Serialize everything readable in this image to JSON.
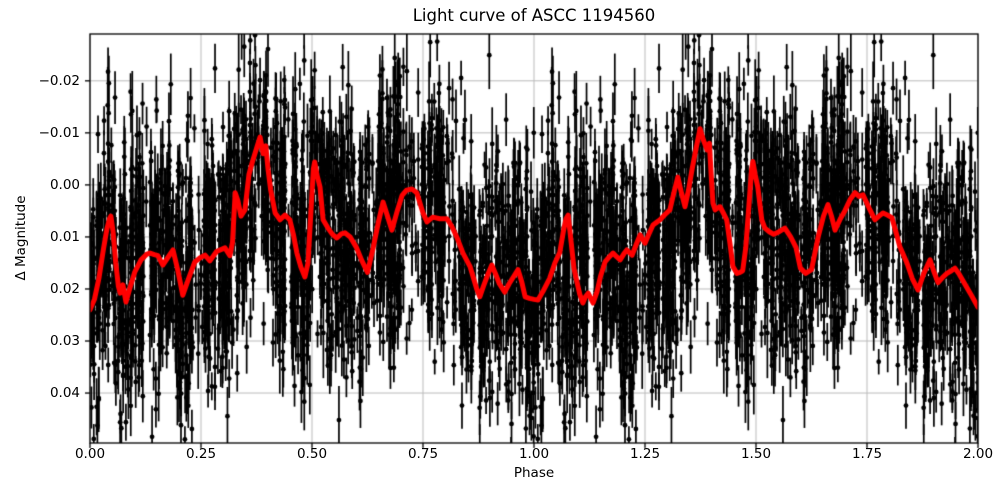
{
  "chart_data": {
    "type": "scatter",
    "title": "Light curve of ASCC 1194560",
    "xlabel": "Phase",
    "ylabel": "Δ Magnitude",
    "xlim": [
      0,
      2
    ],
    "ylim": {
      "top": -0.029,
      "bottom": 0.0496
    },
    "y_axis_inverted_magnitude": true,
    "grid": true,
    "grid_color": "#bbbbbb",
    "background": "#ffffff",
    "frame_color": "#000000",
    "x_ticks": {
      "values": [
        0,
        0.25,
        0.5,
        0.75,
        1.0,
        1.25,
        1.5,
        1.75,
        2.0
      ],
      "labels": [
        "0.00",
        "0.25",
        "0.50",
        "0.75",
        "1.00",
        "1.25",
        "1.50",
        "1.75",
        "2.00"
      ]
    },
    "y_ticks": {
      "values": [
        -0.02,
        -0.01,
        0.0,
        0.01,
        0.02,
        0.03,
        0.04
      ],
      "labels": [
        "−0.02",
        "−0.01",
        "0.00",
        "0.01",
        "0.02",
        "0.03",
        "0.04"
      ]
    },
    "series": [
      {
        "name": "observations",
        "type": "scatter_errorbar",
        "color": "#000000",
        "marker_radius": 2.4,
        "errorbar_linewidth": 1.7,
        "synthesis": {
          "seed": 1194560,
          "n_columns": 560,
          "points_per_column_min": 2,
          "points_per_column_max": 8,
          "phase_jitter": 0.002,
          "noise_sigma": 0.012,
          "err_base": 0.002,
          "err_gauss": 0.0022,
          "err_uniform": 0.0015,
          "duplicate_cycle": true
        }
      },
      {
        "name": "smoothed_light_curve",
        "type": "line",
        "color": "#ff0000",
        "linewidth": 5,
        "points": [
          [
            0.0,
            0.024
          ],
          [
            0.01,
            0.022
          ],
          [
            0.02,
            0.018
          ],
          [
            0.03,
            0.0125
          ],
          [
            0.038,
            0.0085
          ],
          [
            0.044,
            0.0065
          ],
          [
            0.047,
            0.006
          ],
          [
            0.052,
            0.009
          ],
          [
            0.058,
            0.015
          ],
          [
            0.064,
            0.0195
          ],
          [
            0.068,
            0.0208
          ],
          [
            0.074,
            0.0192
          ],
          [
            0.081,
            0.0225
          ],
          [
            0.09,
            0.0198
          ],
          [
            0.101,
            0.0167
          ],
          [
            0.115,
            0.0144
          ],
          [
            0.128,
            0.0133
          ],
          [
            0.135,
            0.0131
          ],
          [
            0.145,
            0.0134
          ],
          [
            0.153,
            0.0136
          ],
          [
            0.164,
            0.0154
          ],
          [
            0.175,
            0.014
          ],
          [
            0.187,
            0.0125
          ],
          [
            0.198,
            0.0165
          ],
          [
            0.209,
            0.0212
          ],
          [
            0.222,
            0.018
          ],
          [
            0.236,
            0.0148
          ],
          [
            0.248,
            0.014
          ],
          [
            0.259,
            0.0135
          ],
          [
            0.27,
            0.0146
          ],
          [
            0.285,
            0.0128
          ],
          [
            0.304,
            0.0121
          ],
          [
            0.315,
            0.0136
          ],
          [
            0.321,
            0.011
          ],
          [
            0.327,
            0.0015
          ],
          [
            0.333,
            0.003
          ],
          [
            0.34,
            0.006
          ],
          [
            0.349,
            0.0048
          ],
          [
            0.358,
            -0.002
          ],
          [
            0.366,
            -0.0045
          ],
          [
            0.375,
            -0.007
          ],
          [
            0.383,
            -0.0092
          ],
          [
            0.39,
            -0.006
          ],
          [
            0.396,
            -0.0075
          ],
          [
            0.401,
            -0.003
          ],
          [
            0.407,
            0.001
          ],
          [
            0.417,
            0.0054
          ],
          [
            0.428,
            0.0067
          ],
          [
            0.439,
            0.0058
          ],
          [
            0.45,
            0.0067
          ],
          [
            0.458,
            0.0095
          ],
          [
            0.466,
            0.0131
          ],
          [
            0.475,
            0.0158
          ],
          [
            0.484,
            0.0177
          ],
          [
            0.491,
            0.015
          ],
          [
            0.497,
            0.006
          ],
          [
            0.503,
            -0.003
          ],
          [
            0.506,
            -0.0044
          ],
          [
            0.511,
            -0.002
          ],
          [
            0.518,
            0.0004
          ],
          [
            0.525,
            0.0067
          ],
          [
            0.536,
            0.0083
          ],
          [
            0.546,
            0.0095
          ],
          [
            0.556,
            0.0102
          ],
          [
            0.566,
            0.0094
          ],
          [
            0.574,
            0.0092
          ],
          [
            0.586,
            0.01
          ],
          [
            0.6,
            0.012
          ],
          [
            0.612,
            0.0145
          ],
          [
            0.625,
            0.0168
          ],
          [
            0.638,
            0.012
          ],
          [
            0.65,
            0.007
          ],
          [
            0.66,
            0.0033
          ],
          [
            0.67,
            0.006
          ],
          [
            0.68,
            0.0087
          ],
          [
            0.692,
            0.005
          ],
          [
            0.703,
            0.002
          ],
          [
            0.713,
            0.001
          ],
          [
            0.725,
            0.0008
          ],
          [
            0.736,
            0.0015
          ],
          [
            0.75,
            0.0054
          ],
          [
            0.759,
            0.0071
          ],
          [
            0.772,
            0.0062
          ],
          [
            0.788,
            0.0065
          ],
          [
            0.804,
            0.0065
          ],
          [
            0.815,
            0.008
          ],
          [
            0.826,
            0.01
          ],
          [
            0.84,
            0.0131
          ],
          [
            0.856,
            0.0157
          ],
          [
            0.864,
            0.018
          ],
          [
            0.871,
            0.02
          ],
          [
            0.878,
            0.0215
          ],
          [
            0.886,
            0.0195
          ],
          [
            0.897,
            0.017
          ],
          [
            0.905,
            0.0154
          ],
          [
            0.913,
            0.017
          ],
          [
            0.922,
            0.019
          ],
          [
            0.934,
            0.0206
          ],
          [
            0.944,
            0.019
          ],
          [
            0.955,
            0.0175
          ],
          [
            0.964,
            0.0163
          ],
          [
            0.972,
            0.0185
          ],
          [
            0.98,
            0.0215
          ],
          [
            0.99,
            0.0218
          ],
          [
            1.0,
            0.022
          ],
          [
            1.009,
            0.0221
          ],
          [
            1.02,
            0.0205
          ],
          [
            1.035,
            0.018
          ],
          [
            1.047,
            0.015
          ],
          [
            1.058,
            0.013
          ],
          [
            1.066,
            0.009
          ],
          [
            1.072,
            0.0065
          ],
          [
            1.077,
            0.0058
          ],
          [
            1.083,
            0.0105
          ],
          [
            1.09,
            0.016
          ],
          [
            1.095,
            0.018
          ],
          [
            1.103,
            0.021
          ],
          [
            1.11,
            0.0227
          ],
          [
            1.116,
            0.0215
          ],
          [
            1.122,
            0.0208
          ],
          [
            1.128,
            0.0218
          ],
          [
            1.133,
            0.0227
          ],
          [
            1.142,
            0.0205
          ],
          [
            1.15,
            0.0175
          ],
          [
            1.16,
            0.0148
          ],
          [
            1.17,
            0.0138
          ],
          [
            1.178,
            0.0131
          ],
          [
            1.186,
            0.0138
          ],
          [
            1.194,
            0.0144
          ],
          [
            1.202,
            0.0133
          ],
          [
            1.209,
            0.0125
          ],
          [
            1.215,
            0.013
          ],
          [
            1.221,
            0.0135
          ],
          [
            1.23,
            0.0115
          ],
          [
            1.239,
            0.0096
          ],
          [
            1.245,
            0.0105
          ],
          [
            1.25,
            0.0112
          ],
          [
            1.259,
            0.0094
          ],
          [
            1.268,
            0.0077
          ],
          [
            1.276,
            0.0072
          ],
          [
            1.284,
            0.0067
          ],
          [
            1.295,
            0.0057
          ],
          [
            1.306,
            0.0048
          ],
          [
            1.315,
            0.0015
          ],
          [
            1.324,
            -0.0015
          ],
          [
            1.332,
            0.0015
          ],
          [
            1.34,
            0.0042
          ],
          [
            1.348,
            0.001
          ],
          [
            1.356,
            -0.003
          ],
          [
            1.365,
            -0.007
          ],
          [
            1.374,
            -0.0108
          ],
          [
            1.382,
            -0.0085
          ],
          [
            1.39,
            -0.0067
          ],
          [
            1.395,
            -0.008
          ],
          [
            1.399,
            -0.002
          ],
          [
            1.403,
            0.0035
          ],
          [
            1.408,
            0.0048
          ],
          [
            1.414,
            0.0044
          ],
          [
            1.419,
            0.0042
          ],
          [
            1.427,
            0.0055
          ],
          [
            1.434,
            0.0067
          ],
          [
            1.441,
            0.011
          ],
          [
            1.448,
            0.0157
          ],
          [
            1.457,
            0.017
          ],
          [
            1.464,
            0.0168
          ],
          [
            1.47,
            0.0165
          ],
          [
            1.477,
            0.012
          ],
          [
            1.484,
            0.004
          ],
          [
            1.49,
            -0.003
          ],
          [
            1.493,
            -0.0045
          ],
          [
            1.498,
            -0.002
          ],
          [
            1.504,
            0.0004
          ],
          [
            1.513,
            0.0067
          ],
          [
            1.52,
            0.0083
          ],
          [
            1.53,
            0.009
          ],
          [
            1.54,
            0.0095
          ],
          [
            1.552,
            0.009
          ],
          [
            1.565,
            0.0083
          ],
          [
            1.578,
            0.01
          ],
          [
            1.59,
            0.012
          ],
          [
            1.6,
            0.016
          ],
          [
            1.612,
            0.017
          ],
          [
            1.625,
            0.0163
          ],
          [
            1.64,
            0.01
          ],
          [
            1.652,
            0.006
          ],
          [
            1.662,
            0.0038
          ],
          [
            1.67,
            0.006
          ],
          [
            1.678,
            0.0087
          ],
          [
            1.69,
            0.0065
          ],
          [
            1.7,
            0.005
          ],
          [
            1.712,
            0.0028
          ],
          [
            1.723,
            0.0015
          ],
          [
            1.732,
            0.0022
          ],
          [
            1.741,
            0.0019
          ],
          [
            1.755,
            0.0045
          ],
          [
            1.768,
            0.0067
          ],
          [
            1.777,
            0.006
          ],
          [
            1.786,
            0.0054
          ],
          [
            1.796,
            0.0058
          ],
          [
            1.806,
            0.0063
          ],
          [
            1.815,
            0.009
          ],
          [
            1.824,
            0.0119
          ],
          [
            1.84,
            0.015
          ],
          [
            1.852,
            0.018
          ],
          [
            1.865,
            0.0202
          ],
          [
            1.878,
            0.017
          ],
          [
            1.892,
            0.0144
          ],
          [
            1.9,
            0.0165
          ],
          [
            1.91,
            0.0188
          ],
          [
            1.92,
            0.0178
          ],
          [
            1.93,
            0.017
          ],
          [
            1.94,
            0.0165
          ],
          [
            1.948,
            0.016
          ],
          [
            1.958,
            0.0172
          ],
          [
            1.97,
            0.019
          ],
          [
            1.985,
            0.0212
          ],
          [
            2.0,
            0.0235
          ]
        ]
      }
    ]
  }
}
